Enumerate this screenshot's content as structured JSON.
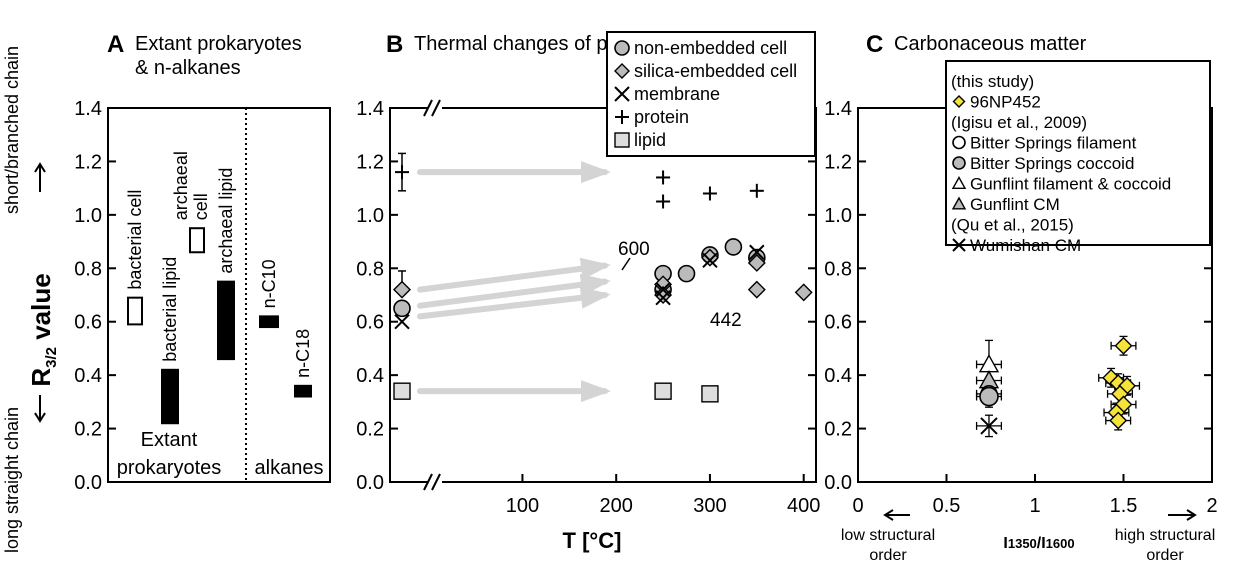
{
  "figure": {
    "y_axis_label_main": "R",
    "y_axis_label_sub": "3/2",
    "y_axis_label_tail": " value",
    "y_top_annotation": "short/branched chain",
    "y_bottom_annotation": "long straight chain"
  },
  "chart_data": [
    {
      "panel": "A",
      "title": "Extant prokaryotes",
      "title_line2": "& n-alkanes",
      "type": "bar",
      "ylim": [
        0.0,
        1.4
      ],
      "y_ticks": [
        "0.0",
        "0.2",
        "0.4",
        "0.6",
        "0.8",
        "1.0",
        "1.2",
        "1.4"
      ],
      "group_labels": [
        "Extant",
        "prokaryotes",
        "alkanes"
      ],
      "ranges": [
        {
          "label": "bacterial cell",
          "low": 0.59,
          "high": 0.69,
          "fill": "#ffffff"
        },
        {
          "label": "bacterial lipid",
          "low": 0.22,
          "high": 0.42,
          "fill": "#000000"
        },
        {
          "label": "archaeal",
          "label2": "cell",
          "low": 0.86,
          "high": 0.95,
          "fill": "#ffffff"
        },
        {
          "label": "archaeal lipid",
          "low": 0.46,
          "high": 0.75,
          "fill": "#000000"
        },
        {
          "label": "n-C10",
          "low": 0.58,
          "high": 0.62,
          "fill": "#000000"
        },
        {
          "label": "n-C18",
          "low": 0.32,
          "high": 0.36,
          "fill": "#000000"
        }
      ]
    },
    {
      "panel": "B",
      "title": "Thermal changes of prokaryotic cells",
      "type": "scatter",
      "xlabel": "T [°C]",
      "xlim": [
        0,
        420
      ],
      "ylim": [
        0.0,
        1.4
      ],
      "x_ticks": [
        "100",
        "200",
        "300",
        "400"
      ],
      "y_ticks": [
        "0.0",
        "0.2",
        "0.4",
        "0.6",
        "0.8",
        "1.0",
        "1.2",
        "1.4"
      ],
      "legend": [
        "non-embedded cell",
        "silica-embedded cell",
        "membrane",
        "protein",
        "lipid"
      ],
      "series": [
        {
          "name": "non-embedded cell",
          "marker": "circle",
          "points": [
            [
              25,
              0.65
            ],
            [
              250,
              0.78
            ],
            [
              250,
              0.72
            ],
            [
              275,
              0.78
            ],
            [
              300,
              0.85
            ],
            [
              325,
              0.88
            ],
            [
              350,
              0.84
            ]
          ]
        },
        {
          "name": "silica-embedded cell",
          "marker": "diamond",
          "points": [
            [
              25,
              0.72
            ],
            [
              250,
              0.74
            ],
            [
              250,
              0.7
            ],
            [
              300,
              0.84
            ],
            [
              350,
              0.82
            ],
            [
              350,
              0.72
            ],
            [
              400,
              0.71
            ]
          ]
        },
        {
          "name": "membrane",
          "marker": "x",
          "points": [
            [
              25,
              0.6
            ],
            [
              250,
              0.72
            ],
            [
              250,
              0.69
            ],
            [
              300,
              0.83
            ],
            [
              350,
              0.86
            ]
          ]
        },
        {
          "name": "protein",
          "marker": "plus",
          "points": [
            [
              25,
              1.16
            ],
            [
              250,
              1.14
            ],
            [
              250,
              1.05
            ],
            [
              300,
              1.08
            ],
            [
              350,
              1.09
            ]
          ]
        },
        {
          "name": "lipid",
          "marker": "square",
          "points": [
            [
              25,
              0.34
            ],
            [
              250,
              0.34
            ],
            [
              300,
              0.33
            ]
          ]
        }
      ],
      "annotations": [
        "600",
        "442"
      ]
    },
    {
      "panel": "C",
      "title": "Carbonaceous matter",
      "type": "scatter",
      "xlabel": "I1350/I1600",
      "xlabel_main": "I",
      "xlabel_sub1": "1350",
      "xlabel_mid": "/I",
      "xlabel_sub2": "1600",
      "x_note_left": [
        "low structural",
        "order"
      ],
      "x_note_right": [
        "high structural",
        "order"
      ],
      "xlim": [
        0,
        2
      ],
      "ylim": [
        0.0,
        1.4
      ],
      "x_ticks": [
        "0",
        "0.5",
        "1",
        "1.5",
        "2"
      ],
      "y_ticks": [
        "0.0",
        "0.2",
        "0.4",
        "0.6",
        "0.8",
        "1.0",
        "1.2",
        "1.4"
      ],
      "legend_notes": [
        "(this study)",
        "(Igisu et al., 2009)",
        "(Qu et al., 2015)"
      ],
      "legend": [
        "96NP452",
        "Bitter Springs filament",
        "Bitter Springs coccoid",
        "Gunflint filament & coccoid",
        "Gunflint CM",
        "Wumishan CM"
      ],
      "series": [
        {
          "name": "96NP452",
          "marker": "diamond",
          "color": "#f5e23a",
          "points": [
            [
              1.5,
              0.51
            ],
            [
              1.43,
              0.39
            ],
            [
              1.47,
              0.37
            ],
            [
              1.52,
              0.36
            ],
            [
              1.48,
              0.33
            ],
            [
              1.5,
              0.29
            ],
            [
              1.46,
              0.26
            ],
            [
              1.47,
              0.23
            ]
          ]
        },
        {
          "name": "Bitter Springs filament",
          "marker": "circle-open",
          "points": [
            [
              0.74,
              0.33
            ]
          ]
        },
        {
          "name": "Bitter Springs coccoid",
          "marker": "circle",
          "points": [
            [
              0.74,
              0.32
            ]
          ]
        },
        {
          "name": "Gunflint filament & coccoid",
          "marker": "triangle-open",
          "points": [
            [
              0.74,
              0.44
            ]
          ]
        },
        {
          "name": "Gunflint CM",
          "marker": "triangle",
          "points": [
            [
              0.74,
              0.38
            ]
          ]
        },
        {
          "name": "Wumishan CM",
          "marker": "x",
          "points": [
            [
              0.74,
              0.21
            ]
          ]
        }
      ]
    }
  ]
}
